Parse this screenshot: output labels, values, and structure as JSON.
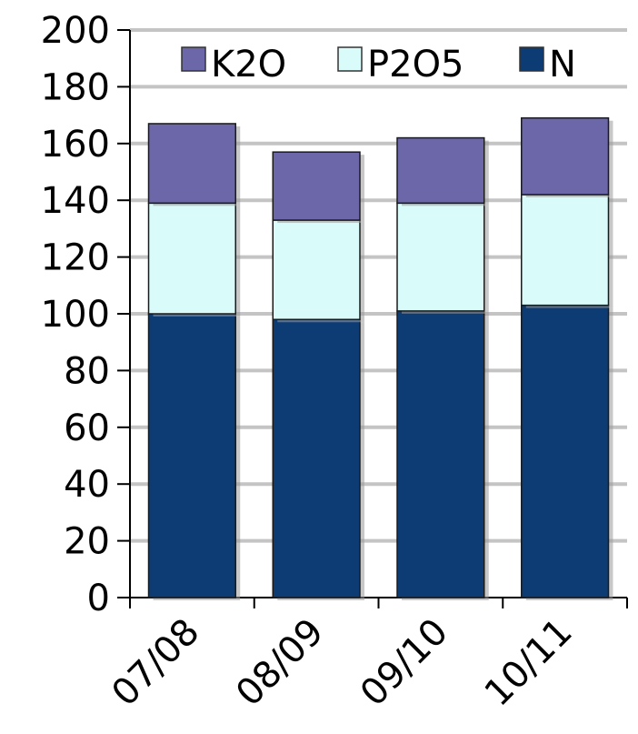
{
  "chart_data": {
    "type": "bar",
    "stacked": true,
    "categories": [
      "07/08",
      "08/09",
      "09/10",
      "10/11"
    ],
    "series": [
      {
        "name": "N",
        "values": [
          100,
          98,
          101,
          103
        ],
        "color": "#0d3b73"
      },
      {
        "name": "P2O5",
        "values": [
          39,
          35,
          38,
          39
        ],
        "color": "#d9fcfa"
      },
      {
        "name": "K2O",
        "values": [
          28,
          24,
          23,
          27
        ],
        "color": "#6b67a8"
      }
    ],
    "legend_order": [
      "K2O",
      "P2O5",
      "N"
    ],
    "legend_position": "top",
    "ylim": [
      0,
      200
    ],
    "yticks": [
      "0",
      "20",
      "40",
      "60",
      "80",
      "100",
      "120",
      "140",
      "160",
      "180",
      "200"
    ],
    "grid": true,
    "title": "",
    "xlabel": "",
    "ylabel": ""
  }
}
